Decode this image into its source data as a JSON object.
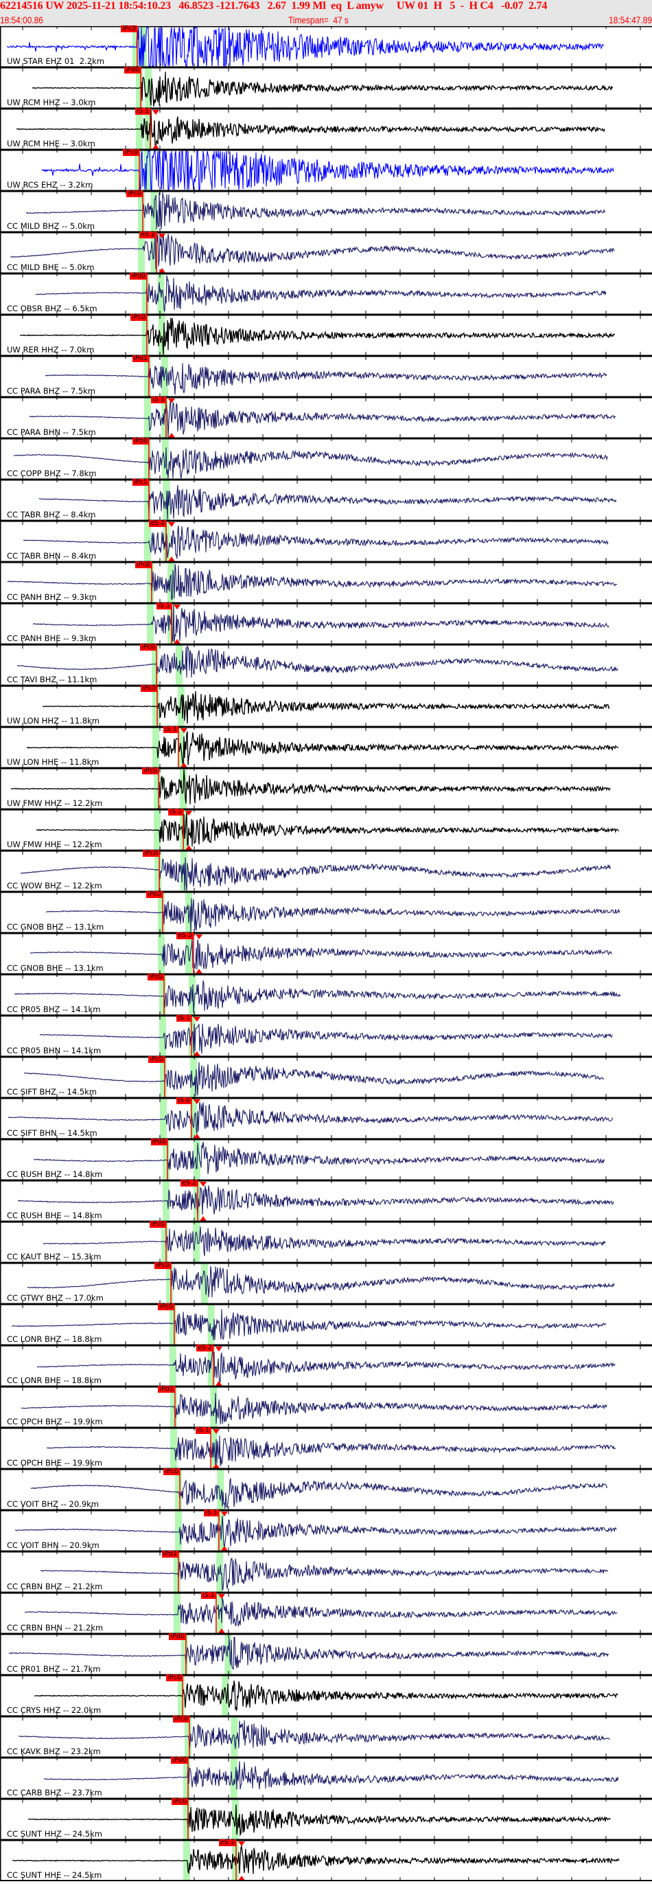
{
  "header": {
    "event_line": "62214516 UW 2025-11-21 18:54:10.23   46.8523 -121.7643   2.67  1.99 Ml  eq  L amyw     UW 01  H   5  -  H C4   -0.07  2.74",
    "start_time": "18:54:00.86",
    "timespan": "Timespan=  47 s",
    "end_time": "18:54:47.89"
  },
  "colors": {
    "pick": "#ff0000",
    "window": "#b3f7b3",
    "short_period": "#0000ff",
    "broadband": "#1c1c66",
    "high_broadband": "#000000",
    "header_bg": "#e6e6e6"
  },
  "traces": [
    {
      "label": "UW STAR EHZ 01  2.2km",
      "color": "#0000ff",
      "picks": [
        {
          "label": "iPc0",
          "time": "18:54:10.76",
          "type": "P"
        }
      ]
    },
    {
      "label": "UW RCM HHZ -- 3.0km",
      "color": "#000000",
      "picks": [
        {
          "label": "iPd0",
          "time": "18:54:11.01",
          "type": "P"
        }
      ]
    },
    {
      "label": "UW RCM HHE -- 3.0km",
      "color": "#000000",
      "picks": [
        {
          "label": "iS 1",
          "time": "18:54:11.70",
          "type": "S"
        }
      ]
    },
    {
      "label": "UW RCS EHZ -- 3.2km",
      "color": "#0000ff",
      "picks": [
        {
          "label": "iPc0",
          "time": "18:54:10.91",
          "type": "P"
        }
      ]
    },
    {
      "label": "CC MILD BHZ -- 5.0km",
      "color": "#1c1c66",
      "picks": [
        {
          "label": "iPc0",
          "time": "18:54:11.16",
          "type": "P"
        }
      ]
    },
    {
      "label": "CC MILD BHE -- 5.0km",
      "color": "#1c1c66",
      "picks": [
        {
          "label": "eS 2",
          "time": "18:54:12.15",
          "type": "S"
        }
      ]
    },
    {
      "label": "CC OBSR BHZ -- 6.5km",
      "color": "#1c1c66",
      "picks": [
        {
          "label": "iPd0",
          "time": "18:54:11.45",
          "type": "P"
        }
      ]
    },
    {
      "label": "UW RER HHZ -- 7.0km",
      "color": "#000000",
      "picks": [
        {
          "label": "iPc0",
          "time": "18:54:11.45",
          "type": "P"
        }
      ]
    },
    {
      "label": "CC PARA BHZ -- 7.5km",
      "color": "#1c1c66",
      "picks": [
        {
          "label": "iPd1",
          "time": "18:54:11.60",
          "type": "P"
        }
      ]
    },
    {
      "label": "CC PARA BHN -- 7.5km",
      "color": "#1c1c66",
      "picks": [
        {
          "label": "iS 1",
          "time": "18:54:12.84",
          "type": "S"
        }
      ]
    },
    {
      "label": "CC COPP BHZ -- 7.8km",
      "color": "#1c1c66",
      "picks": [
        {
          "label": "iPd0",
          "time": "18:54:11.60",
          "type": "P"
        }
      ]
    },
    {
      "label": "CC TABR BHZ -- 8.4km",
      "color": "#1c1c66",
      "picks": [
        {
          "label": "iPc1",
          "time": "18:54:11.60",
          "type": "P"
        }
      ]
    },
    {
      "label": "CC TABR BHN -- 8.4km",
      "color": "#1c1c66",
      "picks": [
        {
          "label": "eS 2",
          "time": "18:54:12.84",
          "type": "S"
        }
      ]
    },
    {
      "label": "CC PANH BHZ -- 9.3km",
      "color": "#1c1c66",
      "picks": [
        {
          "label": "iPc0",
          "time": "18:54:11.80",
          "type": "P"
        }
      ]
    },
    {
      "label": "CC PANH BHE -- 9.3km",
      "color": "#1c1c66",
      "picks": [
        {
          "label": "iS 1",
          "time": "18:54:13.24",
          "type": "S"
        }
      ]
    },
    {
      "label": "CC TAVI BHZ -- 11.1km",
      "color": "#1c1c66",
      "picks": [
        {
          "label": "iPc0",
          "time": "18:54:12.15",
          "type": "P"
        }
      ]
    },
    {
      "label": "UW LON HHZ -- 11.8km",
      "color": "#000000",
      "picks": [
        {
          "label": "iPc0",
          "time": "18:54:12.20",
          "type": "P"
        }
      ]
    },
    {
      "label": "UW LON HHE -- 11.8km",
      "color": "#000000",
      "picks": [
        {
          "label": "iS 1",
          "time": "18:54:13.73",
          "type": "S"
        }
      ]
    },
    {
      "label": "UW FMW HHZ -- 12.2km",
      "color": "#000000",
      "picks": [
        {
          "label": "iPc0",
          "time": "18:54:12.30",
          "type": "P"
        }
      ]
    },
    {
      "label": "UW FMW HHE -- 12.2km",
      "color": "#000000",
      "picks": [
        {
          "label": "iS 1",
          "time": "18:54:14.08",
          "type": "S"
        }
      ]
    },
    {
      "label": "CC WOW BHZ -- 12.2km",
      "color": "#1c1c66",
      "picks": [
        {
          "label": "iPc0",
          "time": "18:54:12.35",
          "type": "P"
        }
      ]
    },
    {
      "label": "CC GNOB BHZ -- 13.1km",
      "color": "#1c1c66",
      "picks": [
        {
          "label": "iPc0",
          "time": "18:54:12.59",
          "type": "P"
        }
      ]
    },
    {
      "label": "CC GNOB BHE -- 13.1km",
      "color": "#1c1c66",
      "picks": [
        {
          "label": "eS 2",
          "time": "18:54:14.82",
          "type": "S"
        }
      ]
    },
    {
      "label": "CC PR05 BHZ -- 14.1km",
      "color": "#1c1c66",
      "picks": [
        {
          "label": "iPc0",
          "time": "18:54:12.69",
          "type": "P"
        }
      ]
    },
    {
      "label": "CC PR05 BHN -- 14.1km",
      "color": "#1c1c66",
      "picks": [
        {
          "label": "iS 1",
          "time": "18:54:14.67",
          "type": "S"
        }
      ]
    },
    {
      "label": "CC SIFT BHZ -- 14.5km",
      "color": "#1c1c66",
      "picks": [
        {
          "label": "iPc0",
          "time": "18:54:12.74",
          "type": "P"
        }
      ]
    },
    {
      "label": "CC SIFT BHN -- 14.5km",
      "color": "#1c1c66",
      "picks": [
        {
          "label": "iS 0",
          "time": "18:54:14.67",
          "type": "S"
        }
      ]
    },
    {
      "label": "CC RUSH BHZ -- 14.8km",
      "color": "#1c1c66",
      "picks": [
        {
          "label": "iPd0",
          "time": "18:54:12.94",
          "type": "P"
        }
      ]
    },
    {
      "label": "CC RUSH BHE -- 14.8km",
      "color": "#1c1c66",
      "picks": [
        {
          "label": "eS 2",
          "time": "18:54:15.12",
          "type": "S"
        }
      ]
    },
    {
      "label": "CC KAUT BHZ -- 15.3km",
      "color": "#1c1c66",
      "picks": [
        {
          "label": "iPc0",
          "time": "18:54:12.84",
          "type": "P"
        }
      ]
    },
    {
      "label": "CC GTWY BHZ -- 17.0km",
      "color": "#1c1c66",
      "picks": [
        {
          "label": "iPc0",
          "time": "18:54:13.19",
          "type": "P"
        }
      ]
    },
    {
      "label": "CC LONR BHZ -- 18.8km",
      "color": "#1c1c66",
      "picks": [
        {
          "label": "iPc0",
          "time": "18:54:13.43",
          "type": "P"
        }
      ]
    },
    {
      "label": "CC LONR BHE -- 18.8km",
      "color": "#1c1c66",
      "picks": [
        {
          "label": "eS 2",
          "time": "18:54:16.25",
          "type": "S"
        }
      ]
    },
    {
      "label": "CC OPCH BHZ -- 19.9km",
      "color": "#1c1c66",
      "picks": [
        {
          "label": "iPd1",
          "time": "18:54:13.48",
          "type": "P"
        }
      ]
    },
    {
      "label": "CC OPCH BHE -- 19.9km",
      "color": "#1c1c66",
      "picks": [
        {
          "label": "iS 1",
          "time": "18:54:16.06",
          "type": "S"
        }
      ]
    },
    {
      "label": "CC VOIT BHZ -- 20.9km",
      "color": "#1c1c66",
      "picks": [
        {
          "label": "iPc0",
          "time": "18:54:13.83",
          "type": "P"
        }
      ]
    },
    {
      "label": "CC VOIT BHN -- 20.9km",
      "color": "#1c1c66",
      "picks": [
        {
          "label": "iS 1",
          "time": "18:54:16.65",
          "type": "S"
        }
      ]
    },
    {
      "label": "CC CRBN BHZ -- 21.2km",
      "color": "#1c1c66",
      "picks": [
        {
          "label": "iPd1",
          "time": "18:54:13.73",
          "type": "P"
        }
      ]
    },
    {
      "label": "CC CRBN BHN -- 21.2km",
      "color": "#1c1c66",
      "picks": [
        {
          "label": "iS 1",
          "time": "18:54:16.45",
          "type": "S"
        }
      ]
    },
    {
      "label": "CC PR01 BHZ -- 21.7km",
      "color": "#1c1c66",
      "picks": [
        {
          "label": "iPd0",
          "time": "18:54:14.27",
          "type": "P"
        }
      ]
    },
    {
      "label": "CC CRYS HHZ -- 22.0km",
      "color": "#000000",
      "picks": [
        {
          "label": "iPc0",
          "time": "18:54:14.03",
          "type": "P"
        }
      ]
    },
    {
      "label": "CC KAVK BHZ -- 23.2km",
      "color": "#1c1c66",
      "picks": [
        {
          "label": "iPc0",
          "time": "18:54:14.52",
          "type": "P"
        }
      ]
    },
    {
      "label": "CC CARB BHZ -- 23.7km",
      "color": "#1c1c66",
      "picks": [
        {
          "label": "iPd0",
          "time": "18:54:14.42",
          "type": "P"
        }
      ]
    },
    {
      "label": "CC SUNT HHZ -- 24.5km",
      "color": "#000000",
      "picks": [
        {
          "label": "iPc0",
          "time": "18:54:14.42",
          "type": "P"
        }
      ]
    },
    {
      "label": "CC SUNT HHE -- 24.5km",
      "color": "#000000",
      "picks": [
        {
          "label": "eS 2",
          "time": "18:54:17.89",
          "type": "S"
        }
      ]
    }
  ]
}
